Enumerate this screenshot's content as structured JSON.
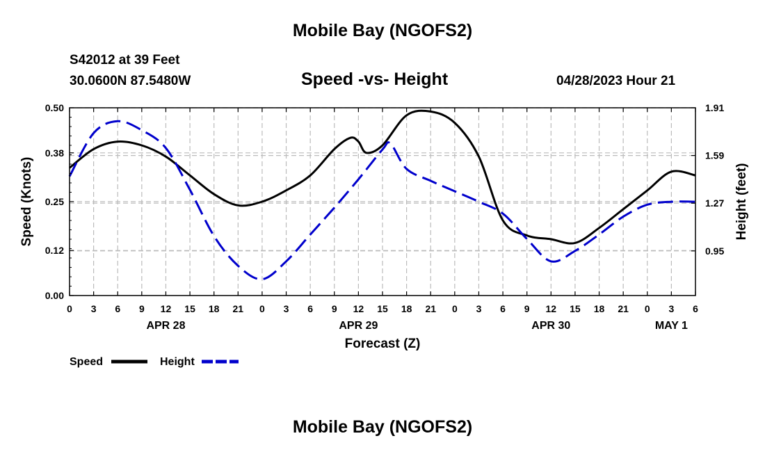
{
  "header": {
    "title": "Mobile Bay (NGOFS2)",
    "station": "S42012 at 39 Feet",
    "coords": "30.0600N  87.5480W",
    "subtitle": "Speed -vs- Height",
    "datetime": "04/28/2023 Hour 21"
  },
  "footer": {
    "title": "Mobile Bay (NGOFS2)"
  },
  "colors": {
    "speed": "#000000",
    "height": "#0000cc",
    "grid": "#bbbbbb"
  },
  "chart_data": {
    "type": "line",
    "title": "Speed -vs- Height",
    "xlabel": "Forecast (Z)",
    "ylabel": "Speed (Knots)",
    "y2label": "Height (feet)",
    "xlim": [
      0,
      78
    ],
    "ylim": [
      0,
      0.5
    ],
    "y2lim": [
      0.6505,
      1.91
    ],
    "x_ticks": [
      0,
      3,
      6,
      9,
      12,
      15,
      18,
      21,
      24,
      27,
      30,
      33,
      36,
      39,
      42,
      45,
      48,
      51,
      54,
      57,
      60,
      63,
      66,
      69,
      72,
      75,
      78
    ],
    "x_tick_labels": [
      "0",
      "3",
      "6",
      "9",
      "12",
      "15",
      "18",
      "21",
      "0",
      "3",
      "6",
      "9",
      "12",
      "15",
      "18",
      "21",
      "0",
      "3",
      "6",
      "9",
      "12",
      "15",
      "18",
      "21",
      "0",
      "3",
      "6"
    ],
    "date_labels": [
      {
        "x": 12,
        "label": "APR 28"
      },
      {
        "x": 36,
        "label": "APR 29"
      },
      {
        "x": 60,
        "label": "APR 30"
      },
      {
        "x": 75,
        "label": "MAY 1"
      }
    ],
    "y_ticks": [
      0.0,
      0.12,
      0.25,
      0.38,
      0.5
    ],
    "y_tick_labels": [
      "0.00",
      "0.12",
      "0.25",
      "0.38",
      "0.50"
    ],
    "y2_ticks": [
      0.95,
      1.27,
      1.59,
      1.91
    ],
    "y2_tick_labels": [
      "0.95",
      "1.27",
      "1.59",
      "1.91"
    ],
    "grid": true,
    "legend": [
      {
        "name": "Speed",
        "style": "solid"
      },
      {
        "name": "Height",
        "style": "dashed"
      }
    ],
    "series": [
      {
        "name": "Speed",
        "axis": "left",
        "style": "solid",
        "x": [
          0,
          3,
          6,
          9,
          12,
          15,
          18,
          21,
          24,
          27,
          30,
          33,
          35,
          36,
          37,
          39,
          42,
          45,
          48,
          51,
          54,
          57,
          60,
          63,
          66,
          69,
          72,
          75,
          78
        ],
        "values": [
          0.34,
          0.39,
          0.41,
          0.4,
          0.37,
          0.32,
          0.27,
          0.24,
          0.25,
          0.28,
          0.32,
          0.39,
          0.42,
          0.41,
          0.38,
          0.4,
          0.48,
          0.49,
          0.46,
          0.37,
          0.2,
          0.16,
          0.15,
          0.14,
          0.18,
          0.23,
          0.28,
          0.33,
          0.32
        ]
      },
      {
        "name": "Height",
        "axis": "right",
        "style": "dashed",
        "x": [
          0,
          3,
          6,
          9,
          12,
          15,
          18,
          21,
          24,
          27,
          30,
          33,
          36,
          39,
          40,
          42,
          45,
          48,
          51,
          54,
          57,
          60,
          63,
          66,
          69,
          72,
          75,
          78
        ],
        "values": [
          1.45,
          1.74,
          1.82,
          1.76,
          1.64,
          1.36,
          1.05,
          0.85,
          0.76,
          0.88,
          1.06,
          1.24,
          1.43,
          1.63,
          1.67,
          1.5,
          1.42,
          1.35,
          1.28,
          1.2,
          1.03,
          0.88,
          0.95,
          1.06,
          1.18,
          1.26,
          1.28,
          1.28
        ]
      }
    ]
  }
}
